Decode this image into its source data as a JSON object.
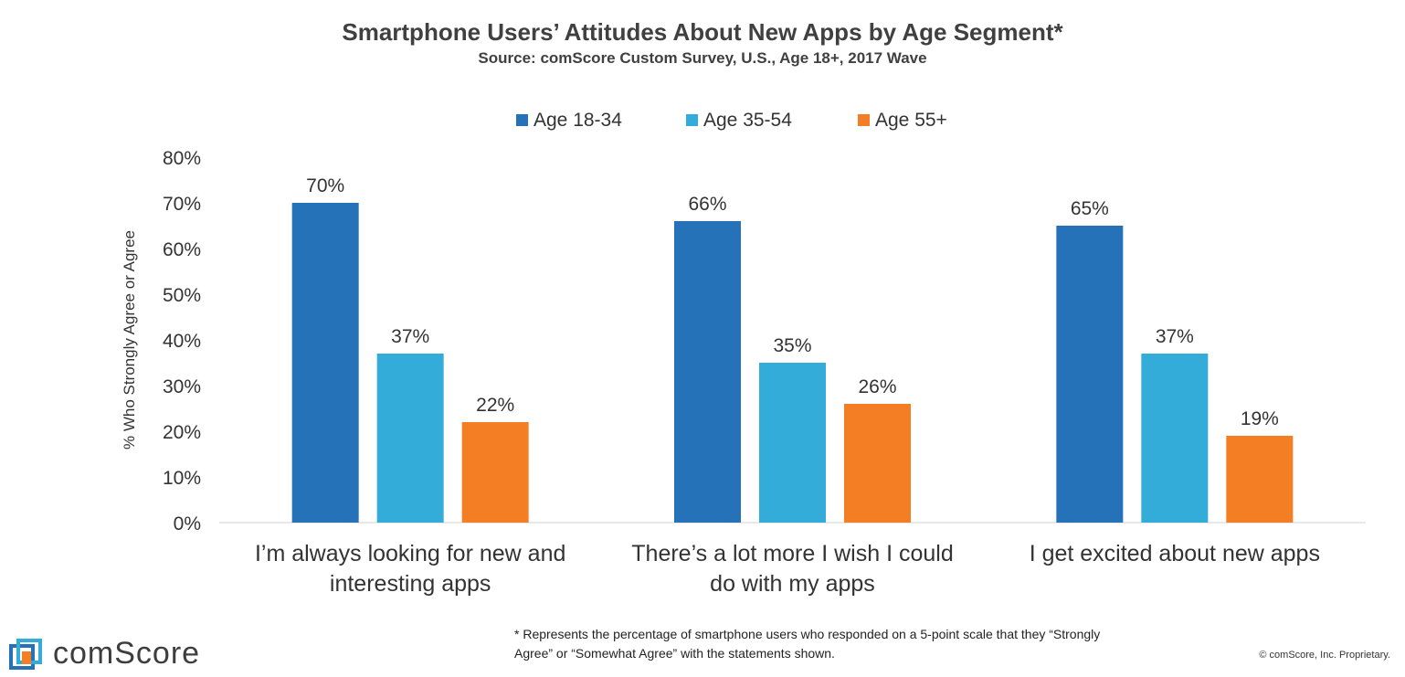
{
  "header": {
    "title": "Smartphone Users’ Attitudes About New Apps by Age Segment*",
    "subtitle": "Source: comScore Custom Survey, U.S., Age 18+, 2017 Wave"
  },
  "chart_data": {
    "type": "bar",
    "title": "Smartphone Users’ Attitudes About New Apps by Age Segment*",
    "subtitle": "Source: comScore Custom Survey, U.S., Age 18+, 2017 Wave",
    "categories": [
      [
        "I’m always looking for new and",
        "interesting apps"
      ],
      [
        "There’s a lot more I wish I could",
        "do with my apps"
      ],
      [
        "I get excited about new apps"
      ]
    ],
    "series": [
      {
        "name": "Age 18-34",
        "color": "#2672b9",
        "values": [
          70,
          66,
          65
        ],
        "labels": [
          "70%",
          "66%",
          "65%"
        ]
      },
      {
        "name": "Age 35-54",
        "color": "#33acd9",
        "values": [
          37,
          35,
          37
        ],
        "labels": [
          "37%",
          "35%",
          "37%"
        ]
      },
      {
        "name": "Age 55+",
        "color": "#f37e23",
        "values": [
          22,
          26,
          19
        ],
        "labels": [
          "22%",
          "26%",
          "19%"
        ]
      }
    ],
    "ylabel": "% Who Strongly Agree or Agree",
    "xlabel": "",
    "ylim": [
      0,
      80
    ],
    "yticks": [
      "0%",
      "10%",
      "20%",
      "30%",
      "40%",
      "50%",
      "60%",
      "70%",
      "80%"
    ],
    "legend_position": "top-center",
    "grid": false
  },
  "footer": {
    "footnote_line1": "* Represents the percentage of smartphone users who responded on a 5-point scale that they “Strongly",
    "footnote_line2": "Agree” or “Somewhat Agree” with the statements shown.",
    "copyright": "© comScore, Inc. Proprietary.",
    "logo_text": "comScore",
    "logo_colors": [
      "#2672b9",
      "#33acd9",
      "#f37e23"
    ]
  }
}
